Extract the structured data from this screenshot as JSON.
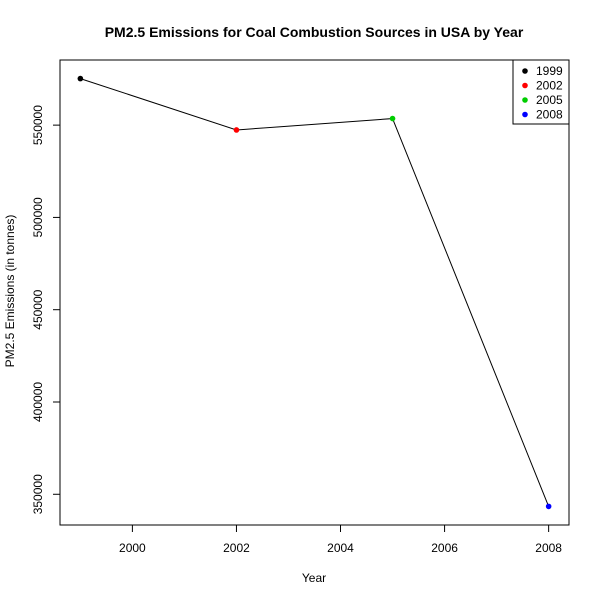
{
  "chart_data": {
    "type": "line",
    "title": "PM2.5 Emissions for Coal Combustion Sources in USA by Year",
    "xlabel": "Year",
    "ylabel": "PM2.5 Emissions (in tonnes)",
    "x": [
      1999,
      2002,
      2005,
      2008
    ],
    "series": [
      {
        "values": [
          575207,
          547380,
          553549,
          343432
        ]
      }
    ],
    "point_colors": [
      "#000000",
      "#ff0000",
      "#00cd00",
      "#0000ff"
    ],
    "line_color": "#000000",
    "xlim": [
      1999,
      2008
    ],
    "ylim": [
      343432,
      575207
    ],
    "x_ticks": [
      2000,
      2002,
      2004,
      2006,
      2008
    ],
    "x_tick_labels": [
      "2000",
      "2002",
      "2004",
      "2006",
      "2008"
    ],
    "y_ticks": [
      350000,
      400000,
      450000,
      500000,
      550000
    ],
    "y_tick_labels": [
      "350000",
      "400000",
      "450000",
      "500000",
      "550000"
    ],
    "grid": false,
    "legend": {
      "placement": "top-right",
      "entries": [
        {
          "label": "1999",
          "color": "#000000"
        },
        {
          "label": "2002",
          "color": "#ff0000"
        },
        {
          "label": "2005",
          "color": "#00cd00"
        },
        {
          "label": "2008",
          "color": "#0000ff"
        }
      ]
    }
  }
}
